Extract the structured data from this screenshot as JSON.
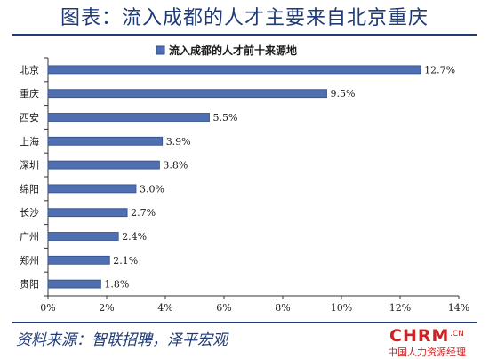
{
  "page": {
    "title": "图表：流入成都的人才主要来自北京重庆",
    "source": "资料来源：智联招聘，泽平宏观"
  },
  "logo": {
    "main": "CHRM",
    "suffix": ".CN",
    "sub": "中国人力资源经理"
  },
  "chart_data": {
    "type": "bar",
    "orientation": "horizontal",
    "title": "",
    "legend": {
      "label": "流入成都的人才前十来源地",
      "position": "top-center"
    },
    "categories": [
      "北京",
      "重庆",
      "西安",
      "上海",
      "深圳",
      "绵阳",
      "长沙",
      "广州",
      "郑州",
      "贵阳"
    ],
    "values": [
      12.7,
      9.5,
      5.5,
      3.9,
      3.8,
      3.0,
      2.7,
      2.4,
      2.1,
      1.8
    ],
    "data_labels": [
      "12.7%",
      "9.5%",
      "5.5%",
      "3.9%",
      "3.8%",
      "3.0%",
      "2.7%",
      "2.4%",
      "2.1%",
      "1.8%"
    ],
    "xlim": [
      0,
      14
    ],
    "x_ticks": [
      0,
      2,
      4,
      6,
      8,
      10,
      12,
      14
    ],
    "x_tick_labels": [
      "0%",
      "2%",
      "4%",
      "6%",
      "8%",
      "10%",
      "12%",
      "14%"
    ],
    "grid": false,
    "colors": {
      "bar": "#4f6fb0",
      "bar_edge": "#2f4e8c",
      "accent": "#1f3b78"
    }
  }
}
